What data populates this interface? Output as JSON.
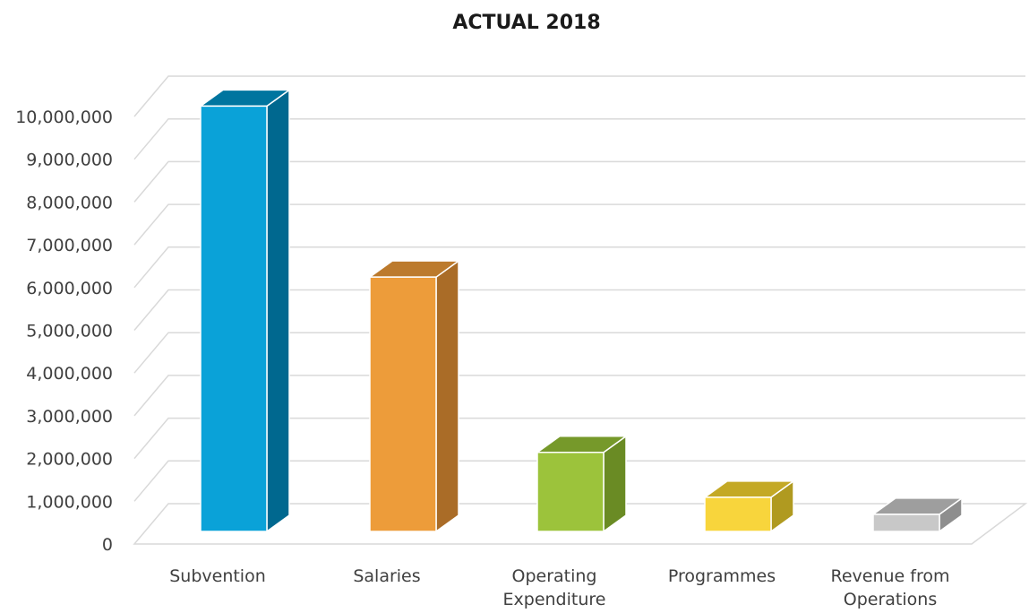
{
  "chart_data": {
    "type": "bar",
    "title": "ACTUAL 2018",
    "categories": [
      [
        "Subvention"
      ],
      [
        "Salaries"
      ],
      [
        "Operating",
        "Expenditure"
      ],
      [
        "Programmes"
      ],
      [
        "Revenue from",
        "Operations"
      ]
    ],
    "values": [
      9950000,
      5950000,
      1850000,
      800000,
      400000
    ],
    "ylim": [
      0,
      10000000
    ],
    "yticks": [
      "0",
      "1,000,000",
      "2,000,000",
      "3,000,000",
      "4,000,000",
      "5,000,000",
      "6,000,000",
      "7,000,000",
      "8,000,000",
      "9,000,000",
      "10,000,000"
    ],
    "three_d": true,
    "grid": true,
    "legend": "none",
    "colors": {
      "front": [
        "#0aa2d8",
        "#ed9c3a",
        "#9cc33b",
        "#f8d53c",
        "#c8c8c8"
      ],
      "side": [
        "#00688f",
        "#aa6c27",
        "#6a8b24",
        "#b09a20",
        "#8e8e8e"
      ],
      "top": [
        "#00759f",
        "#bc7a2d",
        "#76992a",
        "#c4a925",
        "#9e9e9e"
      ]
    }
  }
}
